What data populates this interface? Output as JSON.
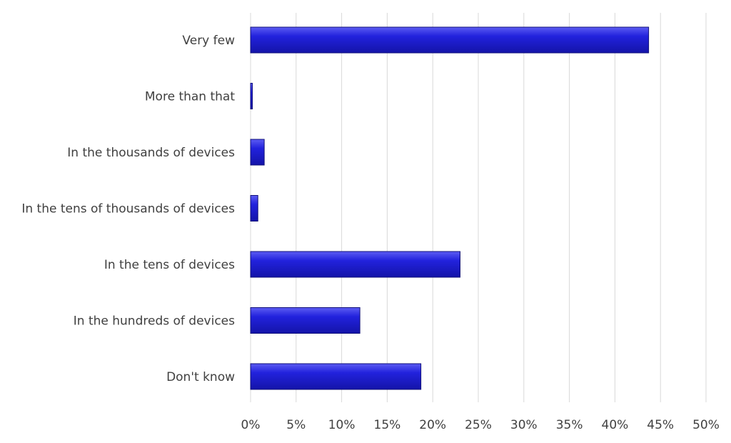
{
  "chart_data": {
    "type": "bar",
    "orientation": "horizontal",
    "title": "",
    "xlabel": "",
    "ylabel": "",
    "categories": [
      "Very few",
      "More than that",
      "In the thousands of devices",
      "In the tens of thousands of devices",
      "In the tens of devices",
      "In the hundreds of devices",
      "Don't know"
    ],
    "values": [
      43.7,
      0.2,
      1.5,
      0.8,
      23.0,
      12.0,
      18.7
    ],
    "value_format": "percent",
    "xlim": [
      0,
      50
    ],
    "xticks": [
      "0%",
      "5%",
      "10%",
      "15%",
      "20%",
      "25%",
      "30%",
      "35%",
      "40%",
      "45%",
      "50%"
    ],
    "grid": "vertical",
    "legend": "none",
    "bar_color": "#2222dd",
    "bar_color_dark": "#1414a8",
    "bar_highlight": "#5c5cf2"
  }
}
